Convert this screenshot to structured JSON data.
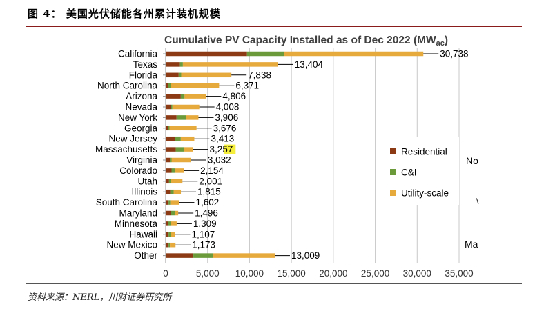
{
  "figure": {
    "title": "图 4：  美国光伏储能各州累计装机规模",
    "source": "资料来源：NERL，川财证券研究所"
  },
  "clipped_texts": [
    "No",
    "\\",
    "Ma"
  ],
  "chart_data": {
    "type": "bar",
    "orientation": "horizontal",
    "stacked": true,
    "title": "Cumulative PV Capacity Installed as of Dec 2022 (MWac)",
    "title_main": "Cumulative PV Capacity Installed as of Dec 2022 (MW",
    "title_sub": "ac",
    "title_end": ")",
    "categories": [
      "California",
      "Texas",
      "Florida",
      "North Carolina",
      "Arizona",
      "Nevada",
      "New York",
      "Georgia",
      "New Jersey",
      "Massachusetts",
      "Virginia",
      "Colorado",
      "Utah",
      "Illinois",
      "South Carolina",
      "Maryland",
      "Minnesota",
      "Hawaii",
      "New Mexico",
      "Other"
    ],
    "series": [
      {
        "name": "Residential",
        "color": "#8b3a14",
        "values": [
          9700,
          1700,
          1550,
          300,
          1800,
          650,
          1300,
          250,
          1100,
          1200,
          500,
          700,
          400,
          550,
          350,
          650,
          250,
          350,
          350,
          3300
        ]
      },
      {
        "name": "C&I",
        "color": "#6a9a3a",
        "values": [
          4400,
          350,
          300,
          350,
          450,
          150,
          1100,
          200,
          700,
          950,
          200,
          450,
          200,
          400,
          200,
          450,
          350,
          250,
          150,
          2300
        ]
      },
      {
        "name": "Utility-scale",
        "color": "#e6a93c",
        "values": [
          16638,
          11354,
          5988,
          5721,
          2556,
          3208,
          1506,
          3226,
          1613,
          1107,
          2332,
          1004,
          1401,
          865,
          1052,
          396,
          709,
          507,
          673,
          7409
        ]
      }
    ],
    "totals": [
      30738,
      13404,
      7838,
      6371,
      4806,
      4008,
      3906,
      3676,
      3413,
      3257,
      3032,
      2154,
      2001,
      1815,
      1602,
      1496,
      1309,
      1107,
      1173,
      13009
    ],
    "total_labels": [
      "30,738",
      "13,404",
      "7,838",
      "6,371",
      "4,806",
      "4,008",
      "3,906",
      "3,676",
      "3,413",
      "3,257",
      "3,032",
      "2,154",
      "2,001",
      "1,815",
      "1,602",
      "1,496",
      "1,309",
      "1,107",
      "1,173",
      "13,009"
    ],
    "highlight": {
      "index": 9,
      "text": "57",
      "color": "#f5ee3a"
    },
    "xlim": [
      0,
      35000
    ],
    "xticks": [
      0,
      5000,
      10000,
      15000,
      20000,
      25000,
      30000,
      35000
    ],
    "xtick_labels": [
      "0",
      "5,000",
      "10,000",
      "15,000",
      "20,000",
      "25,000",
      "30,000",
      "35,000"
    ],
    "grid": true,
    "legend_position": "right"
  }
}
